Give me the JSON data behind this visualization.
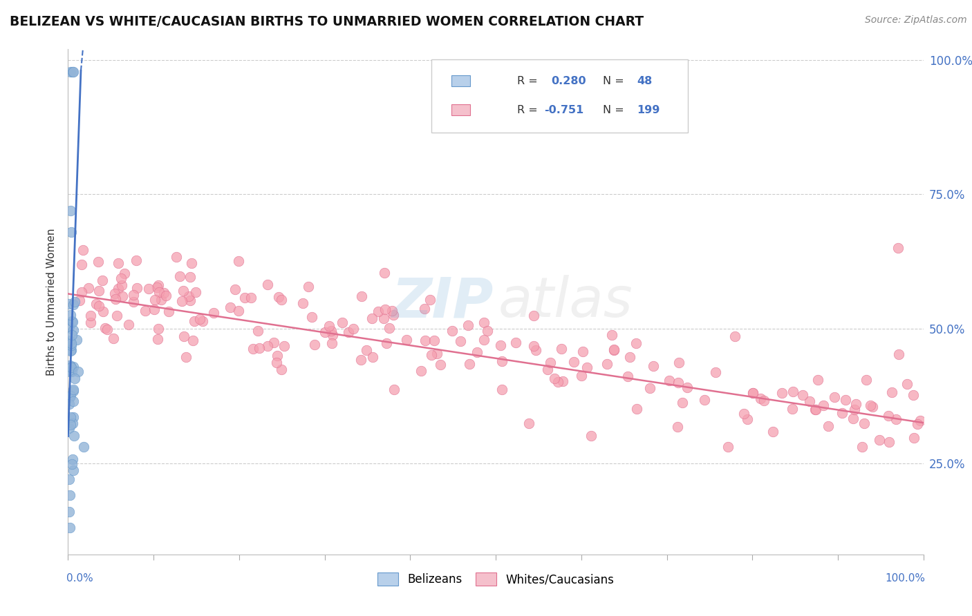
{
  "title": "BELIZEAN VS WHITE/CAUCASIAN BIRTHS TO UNMARRIED WOMEN CORRELATION CHART",
  "source": "Source: ZipAtlas.com",
  "ylabel": "Births to Unmarried Women",
  "xlim": [
    0.0,
    1.0
  ],
  "ylim": [
    0.08,
    1.02
  ],
  "yticks": [
    0.25,
    0.5,
    0.75,
    1.0
  ],
  "ytick_labels": [
    "25.0%",
    "50.0%",
    "75.0%",
    "100.0%"
  ],
  "blue_color": "#92b4d8",
  "blue_edge": "#6699cc",
  "pink_color": "#f5a0b0",
  "pink_edge": "#e07090",
  "trend_blue_color": "#4472c4",
  "trend_pink_color": "#e07090",
  "watermark_zip": "#7ab0d8",
  "watermark_atlas": "#bbbbbb",
  "legend_blue_fill": "#b8d0ea",
  "legend_pink_fill": "#f5c0cc"
}
